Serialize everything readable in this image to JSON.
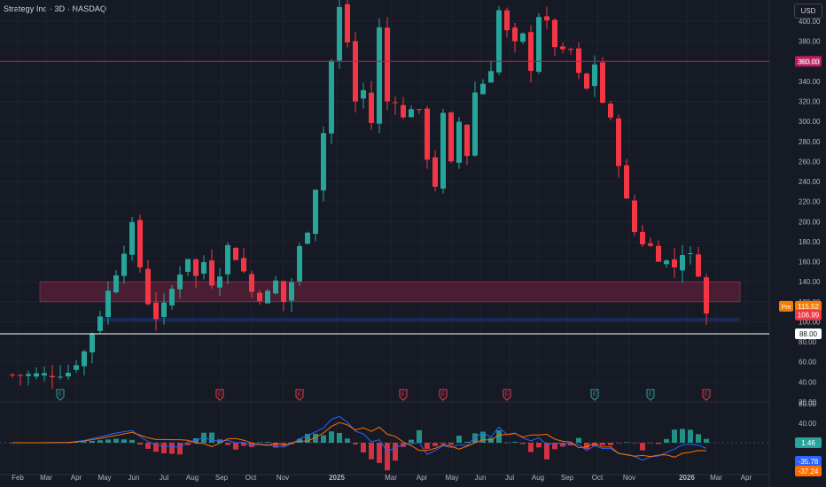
{
  "header": {
    "title": "Strategy Inc · 3D · NASDAQ",
    "currency": "USD"
  },
  "colors": {
    "up": "#26a69a",
    "down": "#f23645",
    "bg": "#161a25",
    "grid": "#1f2330",
    "axis_text": "#b2b5be",
    "hline": "#c2185b",
    "zone": "#5b1f37",
    "macd": "#2962ff",
    "signal": "#ff6d00"
  },
  "chart_data": {
    "type": "candlestick",
    "ylim": [
      0,
      420
    ],
    "y_ticks": [
      20,
      40,
      60,
      80,
      100,
      120,
      140,
      160,
      180,
      200,
      220,
      240,
      260,
      280,
      300,
      320,
      340,
      360,
      380,
      400
    ],
    "x_ticks": [
      "Feb",
      "Mar",
      "Apr",
      "May",
      "Jun",
      "Jul",
      "Aug",
      "Sep",
      "Oct",
      "Nov",
      "2025",
      "Mar",
      "Apr",
      "May",
      "Jun",
      "Jul",
      "Aug",
      "Sep",
      "Oct",
      "Nov",
      "2026",
      "Mar",
      "Apr"
    ],
    "price_path": [
      [
        0,
        47
      ],
      [
        4,
        47
      ],
      [
        7,
        50
      ],
      [
        9,
        70
      ],
      [
        10,
        90
      ],
      [
        11,
        108
      ],
      [
        12,
        130
      ],
      [
        13,
        150
      ],
      [
        15,
        195
      ],
      [
        16,
        155
      ],
      [
        17,
        120
      ],
      [
        18,
        105
      ],
      [
        19,
        115
      ],
      [
        21,
        150
      ],
      [
        22,
        165
      ],
      [
        23,
        145
      ],
      [
        24,
        160
      ],
      [
        25,
        140
      ],
      [
        26,
        150
      ],
      [
        27,
        175
      ],
      [
        28,
        165
      ],
      [
        29,
        150
      ],
      [
        30,
        130
      ],
      [
        31,
        125
      ],
      [
        32,
        128
      ],
      [
        33,
        140
      ],
      [
        34,
        120
      ],
      [
        35,
        140
      ],
      [
        36,
        170
      ],
      [
        37,
        200
      ],
      [
        38,
        240
      ],
      [
        39,
        290
      ],
      [
        40,
        360
      ],
      [
        41,
        410
      ],
      [
        42,
        380
      ],
      [
        43,
        320
      ],
      [
        44,
        330
      ],
      [
        45,
        300
      ],
      [
        46,
        390
      ],
      [
        47,
        320
      ],
      [
        48,
        330
      ],
      [
        49,
        300
      ],
      [
        50,
        320
      ],
      [
        51,
        300
      ],
      [
        52,
        270
      ],
      [
        53,
        240
      ],
      [
        54,
        300
      ],
      [
        55,
        250
      ],
      [
        56,
        300
      ],
      [
        57,
        270
      ],
      [
        58,
        330
      ],
      [
        59,
        340
      ],
      [
        60,
        360
      ],
      [
        61,
        410
      ],
      [
        62,
        385
      ],
      [
        63,
        370
      ],
      [
        64,
        380
      ],
      [
        65,
        360
      ],
      [
        66,
        410
      ],
      [
        67,
        390
      ],
      [
        68,
        380
      ],
      [
        69,
        360
      ],
      [
        70,
        370
      ],
      [
        71,
        340
      ],
      [
        72,
        330
      ],
      [
        73,
        360
      ],
      [
        74,
        320
      ],
      [
        75,
        300
      ],
      [
        76,
        260
      ],
      [
        77,
        220
      ],
      [
        78,
        190
      ],
      [
        79,
        180
      ],
      [
        80,
        175
      ],
      [
        81,
        165
      ],
      [
        82,
        160
      ],
      [
        83,
        155
      ],
      [
        84,
        170
      ],
      [
        85,
        165
      ],
      [
        86,
        150
      ],
      [
        87,
        107
      ]
    ],
    "levels": [
      {
        "value": 360,
        "label": "360.00",
        "style": "resistance"
      },
      {
        "value": 88,
        "label": "88.00",
        "style": "support"
      }
    ],
    "zone": {
      "low": 120,
      "high": 140
    },
    "price_labels": [
      {
        "label": "115.52",
        "badge": "Pre",
        "value": 115.52
      },
      {
        "label": "106.99",
        "value": 106.99
      }
    ],
    "earnings_markers": [
      {
        "index": 6,
        "type": "E",
        "color": "up"
      },
      {
        "index": 26,
        "type": "E",
        "color": "down"
      },
      {
        "index": 36,
        "type": "E",
        "color": "down"
      },
      {
        "index": 49,
        "type": "E",
        "color": "down"
      },
      {
        "index": 54,
        "type": "E",
        "color": "down"
      },
      {
        "index": 62,
        "type": "E",
        "color": "down"
      },
      {
        "index": 73,
        "type": "E",
        "color": "up"
      },
      {
        "index": 80,
        "type": "E",
        "color": "up"
      },
      {
        "index": 87,
        "type": "E",
        "color": "down"
      }
    ],
    "indicator": {
      "name": "MACD",
      "ticks": [
        80,
        40
      ],
      "labels": [
        {
          "label": "1.46",
          "color": "#26a69a"
        },
        {
          "label": "-35.78",
          "color": "#2962ff"
        },
        {
          "label": "-37.24",
          "color": "#ff6d00"
        }
      ]
    }
  }
}
